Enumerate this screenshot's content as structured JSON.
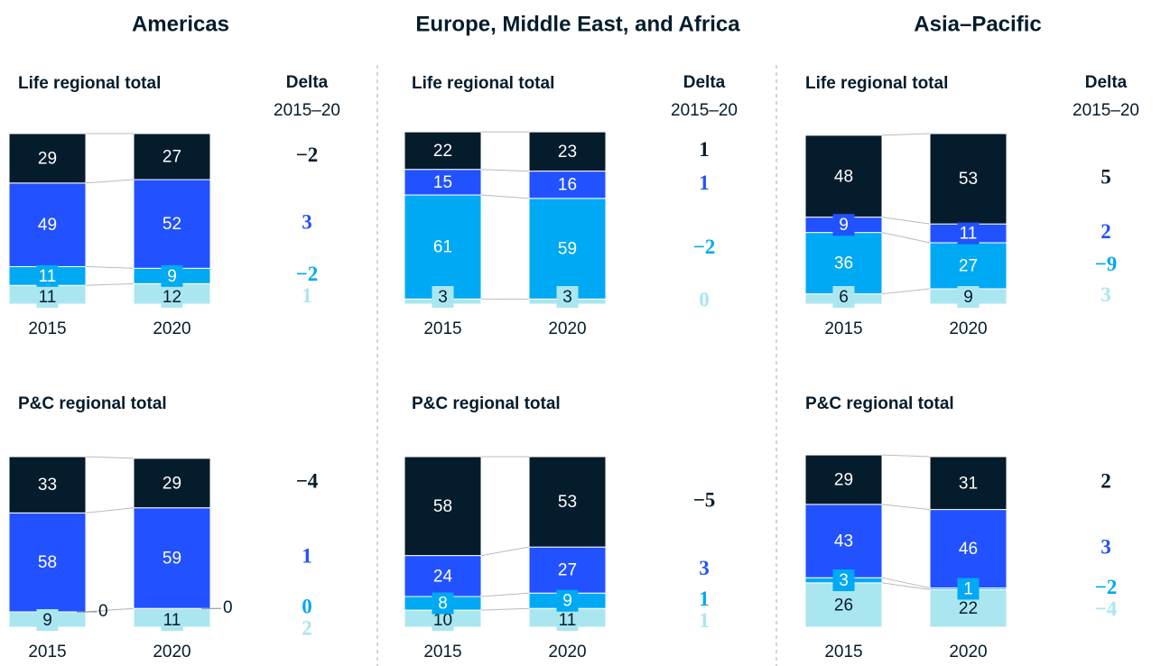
{
  "regions": [
    "Americas",
    "Europe, Middle East, and Africa",
    "Asia–Pacific"
  ],
  "chart_data": [
    {
      "type": "bar",
      "stacked": true,
      "title": "Life regional total",
      "delta_title": "Delta",
      "delta_subtitle": "2015–20",
      "categories": [
        "2015",
        "2020"
      ],
      "ylim": [
        0,
        100
      ],
      "series": [
        {
          "color": "#aae6f0",
          "values": [
            11,
            12
          ]
        },
        {
          "color": "#00a9f4",
          "values": [
            11,
            9
          ]
        },
        {
          "color": "#2251ff",
          "values": [
            49,
            52
          ]
        },
        {
          "color": "#051c2c",
          "values": [
            29,
            27
          ]
        }
      ],
      "deltas": [
        1,
        -2,
        3,
        -2
      ],
      "delta_labels": [
        "1",
        "−2",
        "3",
        "−2"
      ]
    },
    {
      "type": "bar",
      "stacked": true,
      "title": "Life regional total",
      "delta_title": "Delta",
      "delta_subtitle": "2015–20",
      "categories": [
        "2015",
        "2020"
      ],
      "ylim": [
        0,
        100
      ],
      "series": [
        {
          "color": "#aae6f0",
          "values": [
            3,
            3
          ]
        },
        {
          "color": "#00a9f4",
          "values": [
            61,
            59
          ]
        },
        {
          "color": "#2251ff",
          "values": [
            15,
            16
          ]
        },
        {
          "color": "#051c2c",
          "values": [
            22,
            23
          ]
        }
      ],
      "deltas": [
        0,
        -2,
        1,
        1
      ],
      "delta_labels": [
        "0",
        "−2",
        "1",
        "1"
      ]
    },
    {
      "type": "bar",
      "stacked": true,
      "title": "Life regional total",
      "delta_title": "Delta",
      "delta_subtitle": "2015–20",
      "categories": [
        "2015",
        "2020"
      ],
      "ylim": [
        0,
        100
      ],
      "series": [
        {
          "color": "#aae6f0",
          "values": [
            6,
            9
          ]
        },
        {
          "color": "#00a9f4",
          "values": [
            36,
            27
          ]
        },
        {
          "color": "#2251ff",
          "values": [
            9,
            11
          ]
        },
        {
          "color": "#051c2c",
          "values": [
            48,
            53
          ]
        }
      ],
      "deltas": [
        3,
        -9,
        2,
        5
      ],
      "delta_labels": [
        "3",
        "−9",
        "2",
        "5"
      ]
    },
    {
      "type": "bar",
      "stacked": true,
      "title": "P&C regional total",
      "categories": [
        "2015",
        "2020"
      ],
      "ylim": [
        0,
        100
      ],
      "series": [
        {
          "color": "#aae6f0",
          "values": [
            9,
            11
          ]
        },
        {
          "color": "#00a9f4",
          "values": [
            0,
            0
          ]
        },
        {
          "color": "#2251ff",
          "values": [
            58,
            59
          ]
        },
        {
          "color": "#051c2c",
          "values": [
            33,
            29
          ]
        }
      ],
      "deltas": [
        2,
        0,
        1,
        -4
      ],
      "delta_labels": [
        "2",
        "0",
        "1",
        "−4"
      ]
    },
    {
      "type": "bar",
      "stacked": true,
      "title": "P&C regional total",
      "categories": [
        "2015",
        "2020"
      ],
      "ylim": [
        0,
        100
      ],
      "series": [
        {
          "color": "#aae6f0",
          "values": [
            10,
            11
          ]
        },
        {
          "color": "#00a9f4",
          "values": [
            8,
            9
          ]
        },
        {
          "color": "#2251ff",
          "values": [
            24,
            27
          ]
        },
        {
          "color": "#051c2c",
          "values": [
            58,
            53
          ]
        }
      ],
      "deltas": [
        1,
        1,
        3,
        -5
      ],
      "delta_labels": [
        "1",
        "1",
        "3",
        "−5"
      ]
    },
    {
      "type": "bar",
      "stacked": true,
      "title": "P&C regional total",
      "categories": [
        "2015",
        "2020"
      ],
      "ylim": [
        0,
        100
      ],
      "series": [
        {
          "color": "#aae6f0",
          "values": [
            26,
            22
          ]
        },
        {
          "color": "#00a9f4",
          "values": [
            3,
            1
          ]
        },
        {
          "color": "#2251ff",
          "values": [
            43,
            46
          ]
        },
        {
          "color": "#051c2c",
          "values": [
            29,
            31
          ]
        }
      ],
      "deltas": [
        -4,
        -2,
        3,
        2
      ],
      "delta_labels": [
        "−4",
        "−2",
        "3",
        "2"
      ]
    }
  ]
}
